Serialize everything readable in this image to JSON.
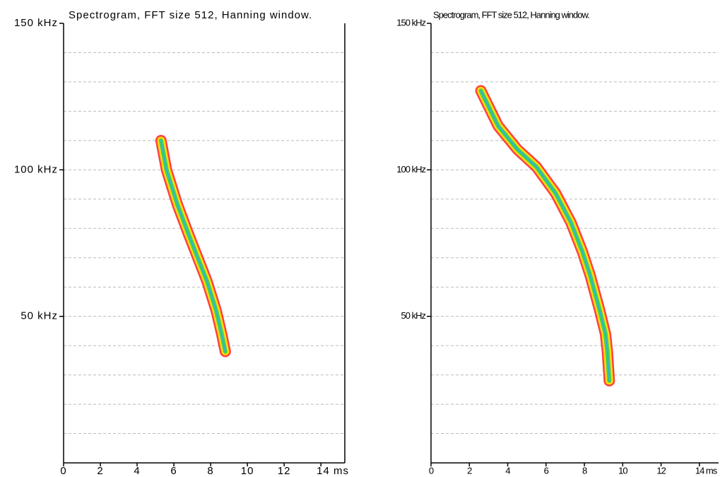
{
  "chart_data": [
    {
      "type": "spectrogram",
      "title": "Spectrogram, FFT size 512, Hanning window.",
      "x": [
        5.3,
        5.6,
        6.2,
        6.8,
        7.3,
        7.8,
        8.3,
        8.6,
        8.8
      ],
      "y": [
        110,
        100,
        88,
        78,
        70,
        62,
        52,
        44,
        38
      ],
      "xlim": [
        0,
        15.3
      ],
      "ylim": [
        0,
        150
      ],
      "xticks": [
        0,
        2,
        4,
        6,
        8,
        10,
        12,
        {
          "value": 14,
          "label": "14 ms"
        }
      ],
      "yticks": [
        {
          "value": 50,
          "label": "50 kHz"
        },
        {
          "value": 100,
          "label": "100 kHz"
        },
        {
          "value": 150,
          "label": "150 kHz"
        }
      ],
      "ygrid": [
        10,
        20,
        30,
        40,
        50,
        60,
        70,
        80,
        90,
        100,
        110,
        120,
        130,
        140
      ],
      "colors": [
        "#ff2020",
        "#ffee00",
        "#30d060",
        "#30b0e0"
      ]
    },
    {
      "type": "spectrogram",
      "title": "Spectrogram, FFT size 512, Hanning window.",
      "x": [
        2.6,
        3.5,
        4.5,
        5.5,
        6.5,
        7.3,
        7.9,
        8.3,
        8.8,
        9.1,
        9.2,
        9.3
      ],
      "y": [
        127,
        115,
        107,
        101,
        92,
        82,
        72,
        64,
        52,
        44,
        38,
        28
      ],
      "xlim": [
        0,
        15
      ],
      "ylim": [
        0,
        150
      ],
      "xticks": [
        0,
        2,
        4,
        6,
        8,
        10,
        12,
        {
          "value": 14,
          "label": "14 ms"
        }
      ],
      "yticks": [
        {
          "value": 50,
          "label": "50 kHz"
        },
        {
          "value": 100,
          "label": "100 kHz"
        },
        {
          "value": 150,
          "label": "150 kHz"
        }
      ],
      "ygrid": [
        10,
        20,
        30,
        40,
        50,
        60,
        70,
        80,
        90,
        100,
        110,
        120,
        130,
        140
      ],
      "colors": [
        "#ff2020",
        "#ffee00",
        "#30d060",
        "#30b0e0"
      ]
    }
  ]
}
